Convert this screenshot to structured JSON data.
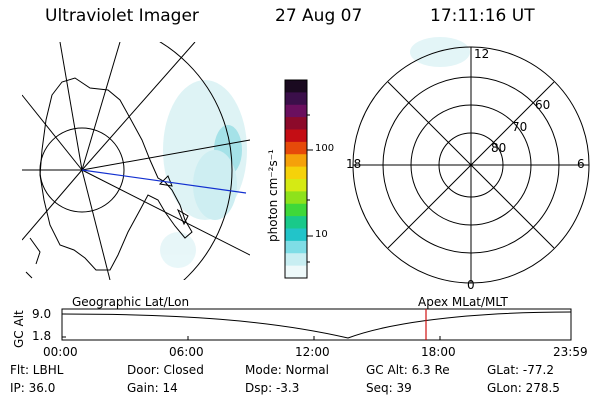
{
  "header": {
    "instrument": "Ultraviolet Imager",
    "date": "27 Aug 07",
    "time": "17:11:16 UT"
  },
  "colorbar": {
    "ticks": [
      "100",
      "10"
    ],
    "unit_label": "photon cm⁻²s⁻¹",
    "colors": [
      "#1a0a20",
      "#3b0f4a",
      "#6a0f5e",
      "#8c0a2a",
      "#c40d14",
      "#e64a0a",
      "#f5a10a",
      "#f5d20a",
      "#d5ea14",
      "#8ee21b",
      "#3fd83a",
      "#19c98a",
      "#22c4c9",
      "#7fdde6",
      "#c8eef2",
      "#eef9fa"
    ]
  },
  "polar_plot": {
    "mlt_labels": [
      "12",
      "18",
      "6",
      "0"
    ],
    "lat_labels": [
      "60",
      "70",
      "80"
    ]
  },
  "timeline": {
    "gc_alt_label": "GC Alt",
    "y_ticks": [
      "9.0",
      "1.8"
    ],
    "left_title": "Geographic Lat/Lon",
    "right_title": "Apex MLat/MLT",
    "x_ticks": [
      "00:00",
      "06:00",
      "12:00",
      "18:00",
      "23:59"
    ]
  },
  "info": {
    "filter": "Flt: LBHL",
    "door": "Door: Closed",
    "mode": "Mode: Normal",
    "gc_alt": "GC Alt: 6.3 Re",
    "glat": "GLat: -77.2",
    "ip": "IP: 36.0",
    "gain": "Gain: 14",
    "dsp": "Dsp:   -3.3",
    "seq": "Seq: 39",
    "glon": "GLon: 278.5"
  }
}
